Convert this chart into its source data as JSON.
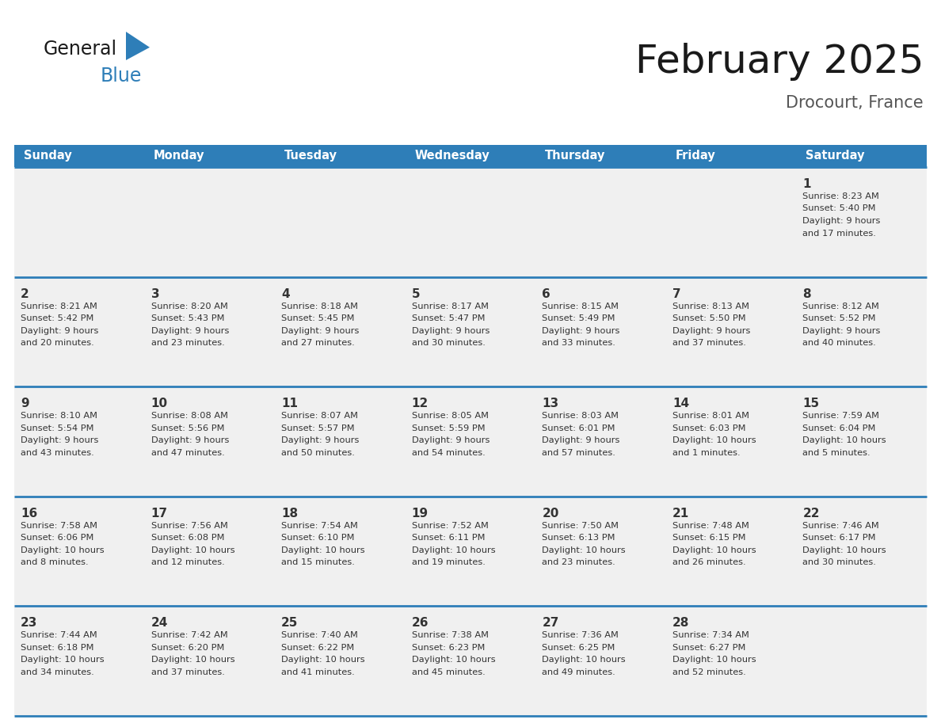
{
  "title": "February 2025",
  "subtitle": "Drocourt, France",
  "days_of_week": [
    "Sunday",
    "Monday",
    "Tuesday",
    "Wednesday",
    "Thursday",
    "Friday",
    "Saturday"
  ],
  "header_bg": "#2E7EB8",
  "header_text_color": "#FFFFFF",
  "cell_bg_light": "#F0F0F0",
  "border_color": "#2E7EB8",
  "text_color": "#333333",
  "title_color": "#1a1a1a",
  "subtitle_color": "#555555",
  "calendar_data": [
    [
      null,
      null,
      null,
      null,
      null,
      null,
      {
        "day": 1,
        "sunrise": "8:23 AM",
        "sunset": "5:40 PM",
        "daylight_hours": 9,
        "daylight_minutes": 17
      }
    ],
    [
      {
        "day": 2,
        "sunrise": "8:21 AM",
        "sunset": "5:42 PM",
        "daylight_hours": 9,
        "daylight_minutes": 20
      },
      {
        "day": 3,
        "sunrise": "8:20 AM",
        "sunset": "5:43 PM",
        "daylight_hours": 9,
        "daylight_minutes": 23
      },
      {
        "day": 4,
        "sunrise": "8:18 AM",
        "sunset": "5:45 PM",
        "daylight_hours": 9,
        "daylight_minutes": 27
      },
      {
        "day": 5,
        "sunrise": "8:17 AM",
        "sunset": "5:47 PM",
        "daylight_hours": 9,
        "daylight_minutes": 30
      },
      {
        "day": 6,
        "sunrise": "8:15 AM",
        "sunset": "5:49 PM",
        "daylight_hours": 9,
        "daylight_minutes": 33
      },
      {
        "day": 7,
        "sunrise": "8:13 AM",
        "sunset": "5:50 PM",
        "daylight_hours": 9,
        "daylight_minutes": 37
      },
      {
        "day": 8,
        "sunrise": "8:12 AM",
        "sunset": "5:52 PM",
        "daylight_hours": 9,
        "daylight_minutes": 40
      }
    ],
    [
      {
        "day": 9,
        "sunrise": "8:10 AM",
        "sunset": "5:54 PM",
        "daylight_hours": 9,
        "daylight_minutes": 43
      },
      {
        "day": 10,
        "sunrise": "8:08 AM",
        "sunset": "5:56 PM",
        "daylight_hours": 9,
        "daylight_minutes": 47
      },
      {
        "day": 11,
        "sunrise": "8:07 AM",
        "sunset": "5:57 PM",
        "daylight_hours": 9,
        "daylight_minutes": 50
      },
      {
        "day": 12,
        "sunrise": "8:05 AM",
        "sunset": "5:59 PM",
        "daylight_hours": 9,
        "daylight_minutes": 54
      },
      {
        "day": 13,
        "sunrise": "8:03 AM",
        "sunset": "6:01 PM",
        "daylight_hours": 9,
        "daylight_minutes": 57
      },
      {
        "day": 14,
        "sunrise": "8:01 AM",
        "sunset": "6:03 PM",
        "daylight_hours": 10,
        "daylight_minutes": 1
      },
      {
        "day": 15,
        "sunrise": "7:59 AM",
        "sunset": "6:04 PM",
        "daylight_hours": 10,
        "daylight_minutes": 5
      }
    ],
    [
      {
        "day": 16,
        "sunrise": "7:58 AM",
        "sunset": "6:06 PM",
        "daylight_hours": 10,
        "daylight_minutes": 8
      },
      {
        "day": 17,
        "sunrise": "7:56 AM",
        "sunset": "6:08 PM",
        "daylight_hours": 10,
        "daylight_minutes": 12
      },
      {
        "day": 18,
        "sunrise": "7:54 AM",
        "sunset": "6:10 PM",
        "daylight_hours": 10,
        "daylight_minutes": 15
      },
      {
        "day": 19,
        "sunrise": "7:52 AM",
        "sunset": "6:11 PM",
        "daylight_hours": 10,
        "daylight_minutes": 19
      },
      {
        "day": 20,
        "sunrise": "7:50 AM",
        "sunset": "6:13 PM",
        "daylight_hours": 10,
        "daylight_minutes": 23
      },
      {
        "day": 21,
        "sunrise": "7:48 AM",
        "sunset": "6:15 PM",
        "daylight_hours": 10,
        "daylight_minutes": 26
      },
      {
        "day": 22,
        "sunrise": "7:46 AM",
        "sunset": "6:17 PM",
        "daylight_hours": 10,
        "daylight_minutes": 30
      }
    ],
    [
      {
        "day": 23,
        "sunrise": "7:44 AM",
        "sunset": "6:18 PM",
        "daylight_hours": 10,
        "daylight_minutes": 34
      },
      {
        "day": 24,
        "sunrise": "7:42 AM",
        "sunset": "6:20 PM",
        "daylight_hours": 10,
        "daylight_minutes": 37
      },
      {
        "day": 25,
        "sunrise": "7:40 AM",
        "sunset": "6:22 PM",
        "daylight_hours": 10,
        "daylight_minutes": 41
      },
      {
        "day": 26,
        "sunrise": "7:38 AM",
        "sunset": "6:23 PM",
        "daylight_hours": 10,
        "daylight_minutes": 45
      },
      {
        "day": 27,
        "sunrise": "7:36 AM",
        "sunset": "6:25 PM",
        "daylight_hours": 10,
        "daylight_minutes": 49
      },
      {
        "day": 28,
        "sunrise": "7:34 AM",
        "sunset": "6:27 PM",
        "daylight_hours": 10,
        "daylight_minutes": 52
      },
      null
    ]
  ],
  "logo_text_general": "General",
  "logo_text_blue": "Blue",
  "logo_color_general": "#1a1a1a",
  "logo_color_blue": "#2E7EB8",
  "figwidth": 11.88,
  "figheight": 9.18,
  "dpi": 100
}
